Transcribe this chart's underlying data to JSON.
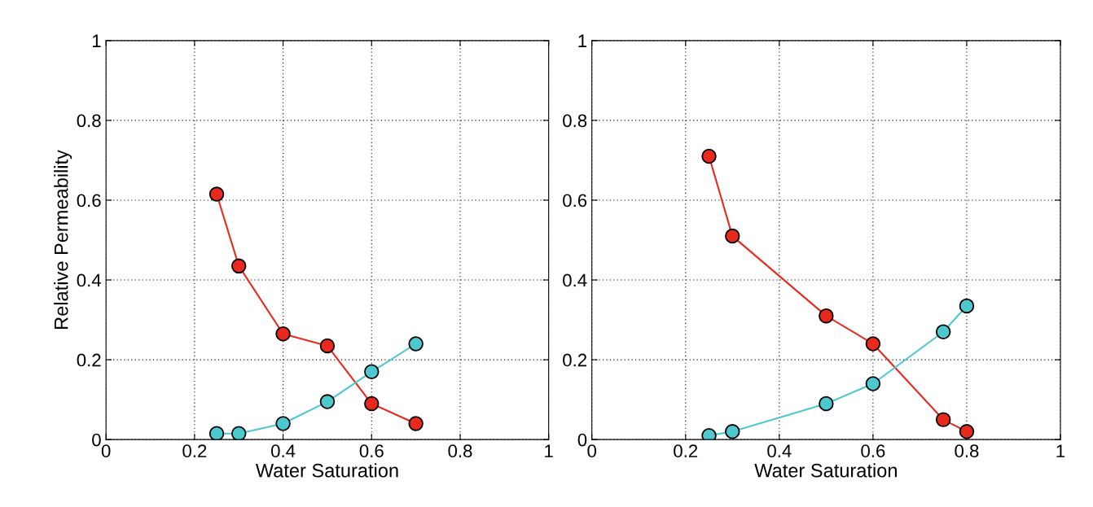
{
  "chart_data": [
    {
      "type": "line",
      "xlabel": "Water Saturation",
      "ylabel": "Relative Permeability",
      "x": [
        0.25,
        0.3,
        0.4,
        0.5,
        0.6,
        0.7
      ],
      "series": [
        {
          "color": "#e8291c",
          "values": [
            0.615,
            0.435,
            0.265,
            0.235,
            0.09,
            0.04
          ]
        },
        {
          "color": "#4dc8cc",
          "values": [
            0.015,
            0.015,
            0.04,
            0.095,
            0.17,
            0.24
          ]
        }
      ],
      "xlim": [
        0,
        1
      ],
      "ylim": [
        0,
        1
      ],
      "xticks": [
        0,
        0.2,
        0.4,
        0.6,
        0.8,
        1
      ],
      "yticks": [
        0,
        0.2,
        0.4,
        0.6,
        0.8,
        1
      ],
      "grid": true,
      "marker": "circle",
      "line_style": "solid"
    },
    {
      "type": "line",
      "xlabel": "Water Saturation",
      "x": [
        0.25,
        0.3,
        0.5,
        0.6,
        0.75,
        0.8
      ],
      "series": [
        {
          "color": "#e8291c",
          "values": [
            0.71,
            0.51,
            0.31,
            0.24,
            0.05,
            0.02
          ]
        },
        {
          "color": "#4dc8cc",
          "values": [
            0.01,
            0.02,
            0.09,
            0.14,
            0.27,
            0.335
          ]
        }
      ],
      "xlim": [
        0,
        1
      ],
      "ylim": [
        0,
        1
      ],
      "xticks": [
        0,
        0.2,
        0.4,
        0.6,
        0.8,
        1
      ],
      "yticks": [
        0,
        0.2,
        0.4,
        0.6,
        0.8,
        1
      ],
      "grid": true,
      "marker": "circle",
      "line_style": "solid"
    }
  ]
}
